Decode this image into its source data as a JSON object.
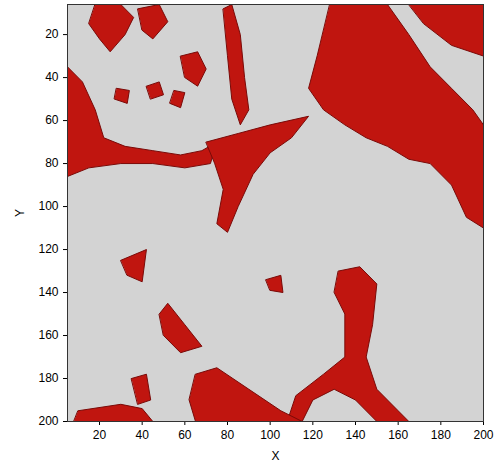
{
  "chart_data": {
    "type": "region",
    "xlabel": "X",
    "ylabel": "Y",
    "xlim": [
      5,
      200
    ],
    "ylim": [
      200,
      6
    ],
    "xticks": [
      20,
      40,
      60,
      80,
      100,
      120,
      140,
      160,
      180,
      200
    ],
    "yticks": [
      20,
      40,
      60,
      80,
      100,
      120,
      140,
      160,
      180,
      200
    ],
    "color": "#c0150f",
    "regions": [
      [
        [
          5,
          35
        ],
        [
          12,
          42
        ],
        [
          18,
          55
        ],
        [
          22,
          68
        ],
        [
          32,
          72
        ],
        [
          45,
          74
        ],
        [
          58,
          76
        ],
        [
          68,
          74
        ],
        [
          75,
          70
        ],
        [
          72,
          80
        ],
        [
          60,
          82
        ],
        [
          45,
          80
        ],
        [
          30,
          80
        ],
        [
          15,
          82
        ],
        [
          5,
          86
        ]
      ],
      [
        [
          18,
          6
        ],
        [
          30,
          6
        ],
        [
          36,
          12
        ],
        [
          32,
          20
        ],
        [
          25,
          28
        ],
        [
          20,
          22
        ],
        [
          15,
          15
        ]
      ],
      [
        [
          38,
          8
        ],
        [
          48,
          6
        ],
        [
          52,
          14
        ],
        [
          45,
          22
        ],
        [
          40,
          18
        ]
      ],
      [
        [
          58,
          30
        ],
        [
          66,
          28
        ],
        [
          70,
          36
        ],
        [
          66,
          44
        ],
        [
          60,
          40
        ]
      ],
      [
        [
          42,
          44
        ],
        [
          48,
          42
        ],
        [
          50,
          48
        ],
        [
          44,
          50
        ]
      ],
      [
        [
          28,
          45
        ],
        [
          34,
          46
        ],
        [
          33,
          52
        ],
        [
          27,
          50
        ]
      ],
      [
        [
          55,
          46
        ],
        [
          60,
          47
        ],
        [
          58,
          54
        ],
        [
          53,
          52
        ]
      ],
      [
        [
          78,
          8
        ],
        [
          82,
          6
        ],
        [
          86,
          20
        ],
        [
          88,
          40
        ],
        [
          90,
          55
        ],
        [
          86,
          62
        ],
        [
          82,
          50
        ],
        [
          80,
          30
        ]
      ],
      [
        [
          70,
          70
        ],
        [
          85,
          66
        ],
        [
          100,
          62
        ],
        [
          118,
          58
        ],
        [
          110,
          68
        ],
        [
          100,
          75
        ],
        [
          92,
          85
        ],
        [
          85,
          100
        ],
        [
          80,
          112
        ],
        [
          75,
          108
        ],
        [
          78,
          92
        ],
        [
          74,
          80
        ]
      ],
      [
        [
          128,
          6
        ],
        [
          155,
          6
        ],
        [
          165,
          20
        ],
        [
          175,
          35
        ],
        [
          185,
          45
        ],
        [
          195,
          55
        ],
        [
          200,
          62
        ],
        [
          200,
          110
        ],
        [
          192,
          105
        ],
        [
          185,
          90
        ],
        [
          175,
          80
        ],
        [
          165,
          78
        ],
        [
          155,
          72
        ],
        [
          145,
          68
        ],
        [
          135,
          62
        ],
        [
          125,
          55
        ],
        [
          118,
          45
        ],
        [
          122,
          30
        ]
      ],
      [
        [
          165,
          6
        ],
        [
          200,
          6
        ],
        [
          200,
          30
        ],
        [
          185,
          25
        ],
        [
          172,
          15
        ]
      ],
      [
        [
          30,
          125
        ],
        [
          42,
          120
        ],
        [
          40,
          135
        ],
        [
          33,
          132
        ]
      ],
      [
        [
          48,
          150
        ],
        [
          52,
          145
        ],
        [
          60,
          155
        ],
        [
          68,
          165
        ],
        [
          58,
          168
        ],
        [
          50,
          160
        ]
      ],
      [
        [
          98,
          134
        ],
        [
          105,
          132
        ],
        [
          106,
          140
        ],
        [
          100,
          139
        ]
      ],
      [
        [
          132,
          130
        ],
        [
          142,
          128
        ],
        [
          150,
          136
        ],
        [
          148,
          155
        ],
        [
          145,
          170
        ],
        [
          150,
          185
        ],
        [
          160,
          195
        ],
        [
          165,
          200
        ],
        [
          150,
          200
        ],
        [
          140,
          190
        ],
        [
          130,
          185
        ],
        [
          120,
          190
        ],
        [
          115,
          200
        ],
        [
          108,
          200
        ],
        [
          112,
          188
        ],
        [
          125,
          178
        ],
        [
          135,
          170
        ],
        [
          135,
          150
        ],
        [
          130,
          140
        ]
      ],
      [
        [
          10,
          195
        ],
        [
          30,
          192
        ],
        [
          40,
          194
        ],
        [
          45,
          200
        ],
        [
          8,
          200
        ]
      ],
      [
        [
          35,
          180
        ],
        [
          42,
          178
        ],
        [
          44,
          190
        ],
        [
          38,
          192
        ]
      ],
      [
        [
          65,
          178
        ],
        [
          75,
          175
        ],
        [
          90,
          185
        ],
        [
          105,
          195
        ],
        [
          115,
          200
        ],
        [
          65,
          200
        ],
        [
          62,
          190
        ]
      ]
    ]
  }
}
